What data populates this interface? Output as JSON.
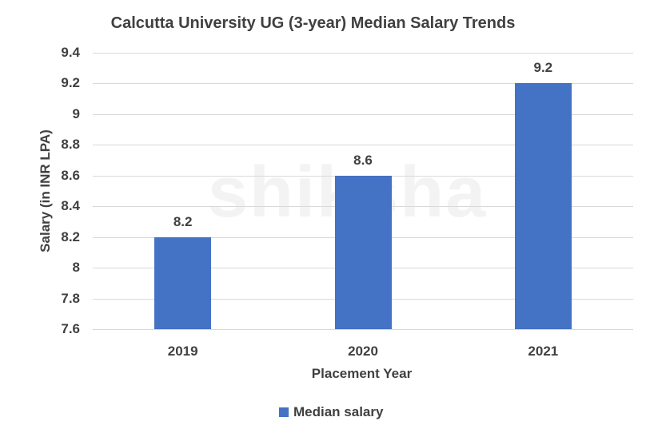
{
  "chart_data": {
    "type": "bar",
    "title": "Calcutta University UG (3-year) Median Salary Trends",
    "xlabel": "Placement Year",
    "ylabel": "Salary (in INR LPA)",
    "categories": [
      "2019",
      "2020",
      "2021"
    ],
    "series": [
      {
        "name": "Median salary",
        "values": [
          8.2,
          8.6,
          9.2
        ],
        "color": "#4472c4"
      }
    ],
    "ylim": [
      7.6,
      9.4
    ],
    "yticks": [
      "9.4",
      "9.2",
      "9",
      "8.8",
      "8.6",
      "8.4",
      "8.2",
      "8",
      "7.8",
      "7.6"
    ],
    "data_labels": [
      "8.2",
      "8.6",
      "9.2"
    ],
    "grid": true,
    "legend_position": "bottom"
  },
  "watermark": "shiksha"
}
